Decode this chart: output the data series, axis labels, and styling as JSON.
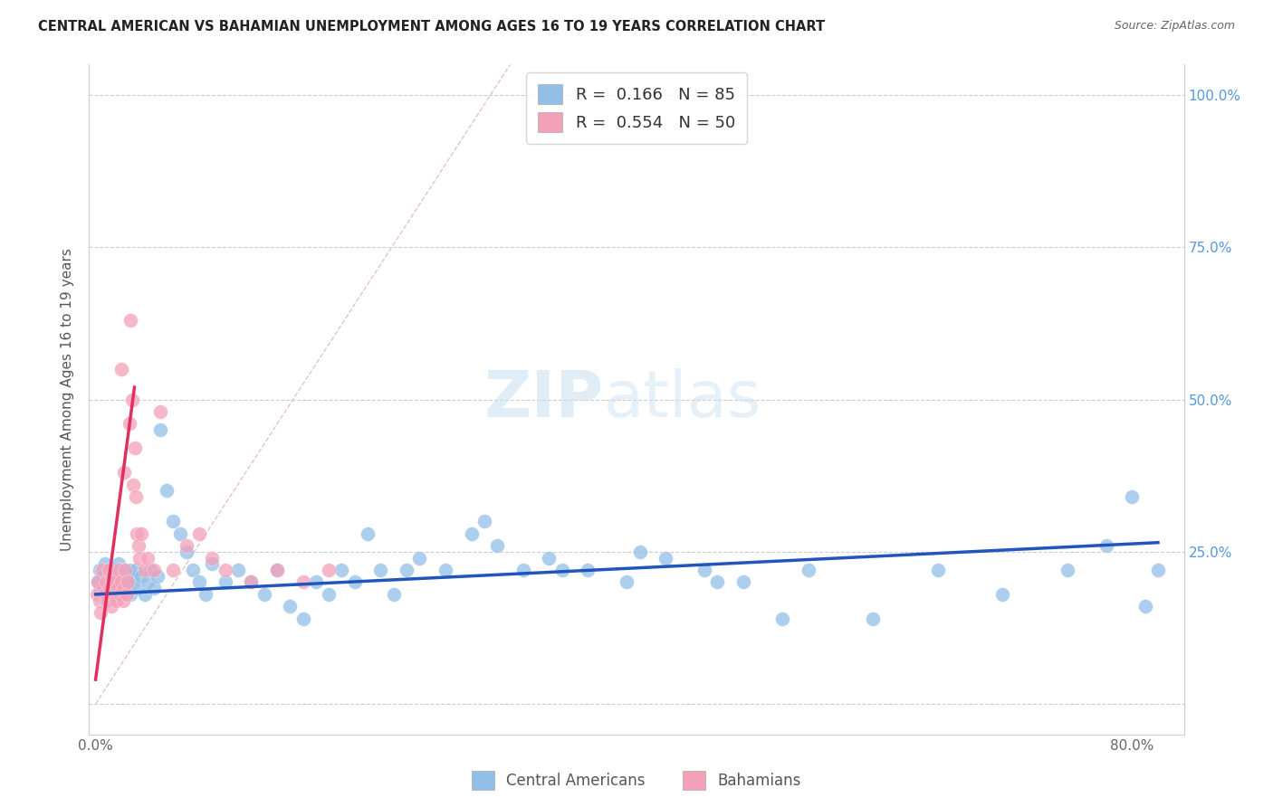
{
  "title": "CENTRAL AMERICAN VS BAHAMIAN UNEMPLOYMENT AMONG AGES 16 TO 19 YEARS CORRELATION CHART",
  "source": "Source: ZipAtlas.com",
  "ylabel": "Unemployment Among Ages 16 to 19 years",
  "xlim": [
    -0.005,
    0.84
  ],
  "ylim": [
    -0.05,
    1.05
  ],
  "x_ticks": [
    0.0,
    0.1,
    0.2,
    0.3,
    0.4,
    0.5,
    0.6,
    0.7,
    0.8
  ],
  "x_tick_labels": [
    "0.0%",
    "",
    "",
    "",
    "",
    "",
    "",
    "",
    "80.0%"
  ],
  "y_ticks": [
    0.0,
    0.25,
    0.5,
    0.75,
    1.0
  ],
  "y_tick_labels_right": [
    "",
    "25.0%",
    "50.0%",
    "75.0%",
    "100.0%"
  ],
  "legend_label1": "Central Americans",
  "legend_label2": "Bahamians",
  "legend_R1": "R = ",
  "legend_R1_val": "0.166",
  "legend_N1": "N = ",
  "legend_N1_val": "85",
  "legend_R2_val": "0.554",
  "legend_N2_val": "50",
  "watermark_zip": "ZIP",
  "watermark_atlas": "atlas",
  "blue_scatter_color": "#92bfe8",
  "pink_scatter_color": "#f4a0b8",
  "blue_line_color": "#2255bb",
  "pink_line_color": "#e03060",
  "diag_color": "#ddbbbb",
  "grid_color": "#cccccc",
  "blue_x": [
    0.002,
    0.003,
    0.004,
    0.005,
    0.006,
    0.007,
    0.008,
    0.009,
    0.01,
    0.011,
    0.012,
    0.013,
    0.014,
    0.015,
    0.016,
    0.017,
    0.018,
    0.019,
    0.02,
    0.021,
    0.022,
    0.023,
    0.024,
    0.025,
    0.026,
    0.027,
    0.028,
    0.029,
    0.03,
    0.032,
    0.035,
    0.038,
    0.04,
    0.042,
    0.045,
    0.048,
    0.05,
    0.055,
    0.06,
    0.065,
    0.07,
    0.075,
    0.08,
    0.085,
    0.09,
    0.1,
    0.11,
    0.12,
    0.13,
    0.14,
    0.15,
    0.16,
    0.17,
    0.18,
    0.19,
    0.2,
    0.21,
    0.22,
    0.23,
    0.24,
    0.25,
    0.27,
    0.29,
    0.31,
    0.33,
    0.35,
    0.38,
    0.41,
    0.44,
    0.47,
    0.5,
    0.55,
    0.6,
    0.65,
    0.7,
    0.75,
    0.78,
    0.8,
    0.81,
    0.82,
    0.3,
    0.36,
    0.42,
    0.48,
    0.53
  ],
  "blue_y": [
    0.2,
    0.22,
    0.19,
    0.21,
    0.18,
    0.23,
    0.2,
    0.19,
    0.22,
    0.18,
    0.21,
    0.2,
    0.19,
    0.22,
    0.21,
    0.18,
    0.23,
    0.2,
    0.19,
    0.22,
    0.18,
    0.21,
    0.2,
    0.19,
    0.22,
    0.18,
    0.21,
    0.2,
    0.22,
    0.19,
    0.21,
    0.18,
    0.2,
    0.22,
    0.19,
    0.21,
    0.45,
    0.35,
    0.3,
    0.28,
    0.25,
    0.22,
    0.2,
    0.18,
    0.23,
    0.2,
    0.22,
    0.2,
    0.18,
    0.22,
    0.16,
    0.14,
    0.2,
    0.18,
    0.22,
    0.2,
    0.28,
    0.22,
    0.18,
    0.22,
    0.24,
    0.22,
    0.28,
    0.26,
    0.22,
    0.24,
    0.22,
    0.2,
    0.24,
    0.22,
    0.2,
    0.22,
    0.14,
    0.22,
    0.18,
    0.22,
    0.26,
    0.34,
    0.16,
    0.22,
    0.3,
    0.22,
    0.25,
    0.2,
    0.14
  ],
  "pink_x": [
    0.001,
    0.002,
    0.003,
    0.004,
    0.005,
    0.006,
    0.007,
    0.008,
    0.009,
    0.01,
    0.011,
    0.012,
    0.013,
    0.014,
    0.015,
    0.016,
    0.017,
    0.018,
    0.019,
    0.02,
    0.021,
    0.022,
    0.023,
    0.024,
    0.025,
    0.026,
    0.027,
    0.028,
    0.029,
    0.03,
    0.031,
    0.032,
    0.033,
    0.034,
    0.035,
    0.038,
    0.04,
    0.045,
    0.05,
    0.06,
    0.07,
    0.08,
    0.09,
    0.1,
    0.12,
    0.14,
    0.16,
    0.18,
    0.02,
    0.022
  ],
  "pink_y": [
    0.18,
    0.2,
    0.17,
    0.15,
    0.22,
    0.19,
    0.18,
    0.2,
    0.17,
    0.22,
    0.19,
    0.16,
    0.21,
    0.18,
    0.2,
    0.17,
    0.19,
    0.22,
    0.18,
    0.2,
    0.17,
    0.19,
    0.22,
    0.18,
    0.2,
    0.46,
    0.63,
    0.5,
    0.36,
    0.42,
    0.34,
    0.28,
    0.26,
    0.24,
    0.28,
    0.22,
    0.24,
    0.22,
    0.48,
    0.22,
    0.26,
    0.28,
    0.24,
    0.22,
    0.2,
    0.22,
    0.2,
    0.22,
    0.55,
    0.38
  ],
  "blue_trend": [
    0.18,
    0.265
  ],
  "pink_trend_x": [
    0.0,
    0.03
  ],
  "pink_trend_y": [
    0.04,
    0.52
  ]
}
